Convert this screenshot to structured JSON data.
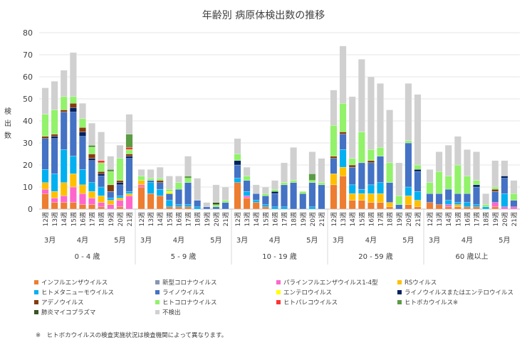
{
  "chart_data": {
    "type": "stacked-bar",
    "title": "年齢別 病原体検出数の推移",
    "ylabel": "検出数",
    "ylim": [
      0,
      80
    ],
    "yticks": [
      0,
      10,
      20,
      30,
      40,
      50,
      60,
      70,
      80
    ],
    "grid": true,
    "legend_position": "bottom",
    "footnote": "※　ヒトボカウイルスの検査実施状況は検査機関によって異なります。",
    "week_suffix": "週",
    "weeks": [
      12,
      13,
      14,
      15,
      16,
      17,
      18,
      19,
      20,
      21
    ],
    "months": [
      {
        "label": "3月",
        "start": 0,
        "end": 1
      },
      {
        "label": "4月",
        "start": 2,
        "end": 6
      },
      {
        "label": "5月",
        "start": 7,
        "end": 9
      }
    ],
    "series": [
      {
        "name": "インフルエンザウイルス",
        "color": "#ed7d31"
      },
      {
        "name": "新型コロナウイルス",
        "color": "#8497b0"
      },
      {
        "name": "パラインフルエンザウイルス1-4型",
        "color": "#ff66cc"
      },
      {
        "name": "RSウイルス",
        "color": "#ffc000"
      },
      {
        "name": "ヒトメタニューモウイルス",
        "color": "#00b0f0"
      },
      {
        "name": "ライノウイルス",
        "color": "#4472c4"
      },
      {
        "name": "エンテロウイルス",
        "color": "#ffff00"
      },
      {
        "name": "ライノウイルスまたはエンテロウイルス",
        "color": "#002060"
      },
      {
        "name": "アデノウイルス",
        "color": "#843c0c"
      },
      {
        "name": "ヒトコロナウイルス",
        "color": "#92f26a"
      },
      {
        "name": "ヒトパレコウイルス",
        "color": "#ff3333"
      },
      {
        "name": "ヒトボカウイルス※",
        "color": "#5b9b44"
      },
      {
        "name": "肺炎マイコプラズマ",
        "color": "#375623"
      },
      {
        "name": "不検出",
        "color": "#d0d0d0"
      }
    ],
    "groups": [
      {
        "label": "0 - 4 歳",
        "data": [
          [
            7,
            0,
            2,
            3,
            6,
            14,
            0,
            0,
            1,
            10,
            0,
            0,
            0,
            12
          ],
          [
            3,
            0,
            2,
            3,
            8,
            16,
            0,
            1,
            1,
            11,
            0,
            0,
            0,
            13
          ],
          [
            3,
            0,
            3,
            6,
            15,
            17,
            0,
            0,
            1,
            6,
            0,
            0,
            0,
            12
          ],
          [
            3,
            0,
            7,
            6,
            8,
            20,
            0,
            2,
            2,
            3,
            0,
            0,
            0,
            20
          ],
          [
            2,
            0,
            5,
            4,
            7,
            15,
            0,
            2,
            2,
            4,
            0,
            0,
            0,
            7
          ],
          [
            2,
            0,
            3,
            3,
            4,
            10,
            0,
            1,
            2,
            3,
            0,
            1,
            0,
            10
          ],
          [
            1,
            0,
            2,
            3,
            4,
            5,
            0,
            1,
            1,
            4,
            1,
            0,
            0,
            13
          ],
          [
            0,
            0,
            2,
            2,
            1,
            3,
            0,
            0,
            3,
            6,
            0,
            1,
            0,
            6
          ],
          [
            1,
            0,
            3,
            1,
            1,
            5,
            0,
            1,
            1,
            10,
            0,
            0,
            0,
            6
          ],
          [
            0,
            0,
            6,
            1,
            1,
            15,
            0,
            1,
            1,
            2,
            1,
            6,
            0,
            9
          ]
        ]
      },
      {
        "label": "5 - 9 歳",
        "data": [
          [
            10,
            0,
            1,
            2,
            0,
            0,
            0,
            0,
            0,
            2,
            0,
            0,
            0,
            3
          ],
          [
            7,
            0,
            0,
            0,
            5,
            1,
            0,
            0,
            0,
            1,
            0,
            0,
            0,
            4
          ],
          [
            6,
            0,
            0,
            0,
            3,
            3,
            0,
            0,
            1,
            1,
            0,
            0,
            0,
            5
          ],
          [
            1,
            0,
            0,
            0,
            3,
            3,
            1,
            0,
            0,
            1,
            0,
            0,
            0,
            6
          ],
          [
            1,
            0,
            0,
            0,
            1,
            7,
            0,
            0,
            0,
            3,
            0,
            0,
            0,
            3
          ],
          [
            1,
            0,
            0,
            0,
            1,
            10,
            0,
            0,
            0,
            2,
            0,
            1,
            0,
            9
          ],
          [
            0,
            0,
            0,
            0,
            1,
            3,
            0,
            0,
            0,
            0,
            0,
            0,
            0,
            10
          ],
          [
            0,
            0,
            0,
            0,
            0,
            1,
            0,
            0,
            0,
            0,
            0,
            0,
            0,
            2
          ],
          [
            0,
            0,
            0,
            0,
            0,
            1,
            0,
            0,
            0,
            1,
            0,
            0,
            1,
            8
          ],
          [
            0,
            0,
            0,
            0,
            0,
            3,
            0,
            0,
            0,
            1,
            0,
            0,
            0,
            6
          ]
        ]
      },
      {
        "label": "10 - 19 歳",
        "data": [
          [
            12,
            0,
            0,
            0,
            2,
            6,
            0,
            2,
            0,
            3,
            0,
            0,
            0,
            7
          ],
          [
            5,
            0,
            1,
            0,
            2,
            5,
            0,
            0,
            0,
            2,
            0,
            0,
            0,
            4
          ],
          [
            3,
            0,
            0,
            0,
            1,
            3,
            0,
            0,
            0,
            0,
            0,
            0,
            0,
            4
          ],
          [
            1,
            0,
            0,
            0,
            1,
            4,
            0,
            0,
            0,
            1,
            0,
            0,
            0,
            3
          ],
          [
            0,
            0,
            0,
            0,
            1,
            6,
            0,
            1,
            0,
            1,
            0,
            0,
            0,
            4
          ],
          [
            0,
            0,
            0,
            0,
            1,
            10,
            0,
            0,
            0,
            1,
            0,
            0,
            0,
            9
          ],
          [
            0,
            0,
            0,
            0,
            0,
            12,
            0,
            0,
            0,
            1,
            0,
            0,
            0,
            15
          ],
          [
            0,
            0,
            0,
            0,
            0,
            7,
            0,
            0,
            0,
            1,
            0,
            0,
            0,
            0
          ],
          [
            0,
            0,
            0,
            0,
            1,
            11,
            0,
            0,
            0,
            1,
            0,
            3,
            0,
            10
          ],
          [
            0,
            0,
            0,
            0,
            0,
            11,
            0,
            0,
            0,
            1,
            0,
            0,
            0,
            11
          ]
        ]
      },
      {
        "label": "20 - 59 歳",
        "data": [
          [
            11,
            0,
            0,
            5,
            0,
            7,
            0,
            0,
            1,
            14,
            0,
            0,
            0,
            16
          ],
          [
            15,
            0,
            0,
            4,
            8,
            7,
            0,
            0,
            1,
            13,
            0,
            0,
            0,
            26
          ],
          [
            4,
            0,
            0,
            3,
            4,
            8,
            0,
            0,
            1,
            3,
            0,
            0,
            0,
            28
          ],
          [
            4,
            0,
            0,
            3,
            2,
            12,
            0,
            0,
            0,
            14,
            0,
            0,
            0,
            33
          ],
          [
            3,
            0,
            0,
            4,
            4,
            10,
            0,
            0,
            1,
            5,
            0,
            0,
            0,
            33
          ],
          [
            3,
            0,
            0,
            4,
            5,
            12,
            0,
            0,
            0,
            4,
            0,
            0,
            0,
            29
          ],
          [
            1,
            0,
            0,
            2,
            0,
            9,
            0,
            0,
            0,
            9,
            0,
            0,
            0,
            24
          ],
          [
            0,
            0,
            0,
            0,
            0,
            2,
            0,
            0,
            0,
            4,
            0,
            0,
            0,
            15
          ],
          [
            2,
            0,
            0,
            4,
            4,
            20,
            0,
            0,
            0,
            1,
            0,
            0,
            0,
            26
          ],
          [
            1,
            0,
            0,
            3,
            4,
            9,
            0,
            1,
            0,
            2,
            0,
            0,
            0,
            32
          ]
        ]
      },
      {
        "label": "60 歳以上",
        "data": [
          [
            3,
            0,
            0,
            0,
            0,
            4,
            0,
            0,
            0,
            5,
            0,
            0,
            0,
            6
          ],
          [
            2,
            0,
            0,
            0,
            0,
            5,
            0,
            0,
            0,
            10,
            0,
            0,
            0,
            9
          ],
          [
            1,
            0,
            1,
            0,
            2,
            5,
            0,
            0,
            0,
            6,
            0,
            0,
            0,
            14
          ],
          [
            1,
            0,
            0,
            1,
            1,
            4,
            0,
            0,
            0,
            13,
            0,
            0,
            0,
            13
          ],
          [
            1,
            0,
            0,
            0,
            2,
            4,
            0,
            0,
            0,
            8,
            0,
            0,
            0,
            12
          ],
          [
            1,
            0,
            0,
            0,
            1,
            8,
            0,
            1,
            0,
            2,
            0,
            0,
            0,
            13
          ],
          [
            0,
            0,
            0,
            0,
            1,
            0,
            0,
            0,
            0,
            1,
            0,
            0,
            0,
            5
          ],
          [
            1,
            0,
            2,
            0,
            0,
            5,
            0,
            0,
            1,
            1,
            0,
            0,
            0,
            12
          ],
          [
            0,
            0,
            1,
            0,
            6,
            7,
            0,
            1,
            0,
            0,
            0,
            0,
            0,
            7
          ],
          [
            0,
            0,
            1,
            0,
            0,
            3,
            0,
            0,
            0,
            3,
            0,
            0,
            0,
            6
          ]
        ]
      }
    ]
  }
}
